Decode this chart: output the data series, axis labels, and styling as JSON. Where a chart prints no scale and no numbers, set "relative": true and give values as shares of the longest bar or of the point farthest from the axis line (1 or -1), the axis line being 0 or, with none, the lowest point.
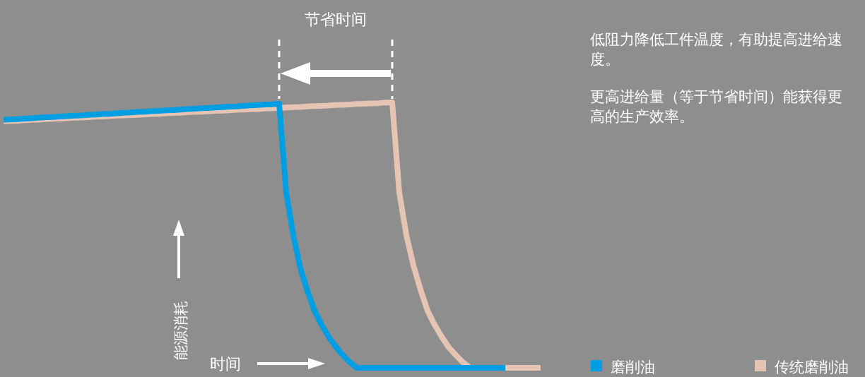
{
  "chart_data": {
    "type": "line",
    "relative": true,
    "xlabel": "时间",
    "ylabel": "能源消耗",
    "legend": "bottom right",
    "annotations": [
      "节省时间",
      "低阻力降低工件温度，有助提高进给速度。",
      "更高进给量（等于节省时间）能获得更高的生产效率。"
    ],
    "categories": [
      null,
      null,
      null,
      null,
      null,
      null,
      null,
      null,
      null,
      null,
      null,
      null,
      null,
      null,
      null,
      null,
      null,
      null,
      null,
      null,
      null,
      null,
      null,
      null,
      null,
      null,
      null,
      null,
      null,
      null,
      null,
      null,
      null,
      null,
      null,
      null,
      null,
      null,
      null,
      null,
      null,
      null,
      null,
      null,
      null,
      null,
      null,
      null,
      null,
      null,
      null,
      null,
      null,
      null,
      null,
      null,
      null,
      null,
      null,
      null,
      null,
      null,
      null,
      null,
      null,
      null,
      null,
      null,
      null,
      null,
      null,
      null,
      null,
      null,
      null,
      null,
      null
    ],
    "series": [
      {
        "name": "磨削油",
        "color": "#009fe3",
        "values": [
          0.934,
          0.936,
          0.937,
          0.939,
          0.94,
          0.942,
          0.944,
          0.945,
          0.947,
          0.948,
          0.95,
          0.951,
          0.953,
          0.954,
          0.956,
          0.957,
          0.959,
          0.961,
          0.962,
          0.964,
          0.965,
          0.967,
          0.968,
          0.97,
          0.971,
          0.973,
          0.975,
          0.976,
          0.978,
          0.979,
          0.981,
          0.982,
          0.984,
          0.985,
          0.987,
          0.989,
          0.99,
          0.992,
          0.993,
          0.995,
          0.66,
          0.5,
          0.375,
          0.29,
          0.215,
          0.162,
          0.117,
          0.08,
          0.048,
          0.021,
          0,
          0,
          0,
          0,
          0,
          0,
          0,
          0,
          0,
          0,
          0,
          0,
          0,
          0,
          0,
          0,
          0,
          0,
          0,
          0,
          0,
          0,
          null,
          null,
          null,
          null,
          null
        ]
      },
      {
        "name": "传统磨削油",
        "color": "#e6c4b3",
        "values": [
          0.929,
          0.93,
          0.931,
          0.933,
          0.934,
          0.935,
          0.937,
          0.938,
          0.939,
          0.941,
          0.942,
          0.943,
          0.944,
          0.946,
          0.947,
          0.948,
          0.95,
          0.951,
          0.952,
          0.953,
          0.955,
          0.956,
          0.957,
          0.959,
          0.96,
          0.961,
          0.963,
          0.964,
          0.965,
          0.966,
          0.968,
          0.969,
          0.97,
          0.972,
          0.973,
          0.974,
          0.975,
          0.977,
          0.978,
          0.979,
          0.981,
          0.982,
          0.983,
          0.985,
          0.986,
          0.987,
          0.988,
          0.99,
          0.991,
          0.992,
          0.994,
          0.995,
          0.996,
          0.997,
          0.999,
          1,
          0.66,
          0.5,
          0.386,
          0.295,
          0.215,
          0.162,
          0.117,
          0.077,
          0.048,
          0.021,
          0,
          0,
          0,
          0,
          0,
          0,
          0,
          0,
          0,
          0,
          0
        ]
      }
    ]
  }
}
